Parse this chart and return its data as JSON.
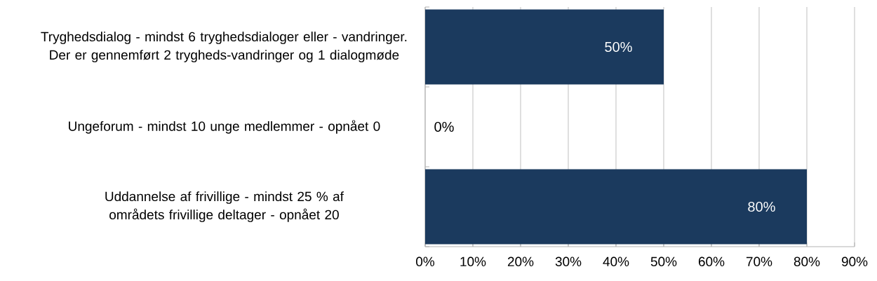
{
  "chart_data": {
    "type": "bar",
    "orientation": "horizontal",
    "categories": [
      "Tryghedsdialog - mindst 6 tryghedsdialoger eller - vandringer. Der er gennemført 2 trygheds-vandringer og 1 dialogmøde",
      "Ungeforum - mindst 10 unge medlemmer - opnået 0",
      "Uddannelse af frivillige - mindst 25 % af områdets frivillige deltager - opnået 20"
    ],
    "values": [
      50,
      0,
      80
    ],
    "value_labels": [
      "50%",
      "0%",
      "80%"
    ],
    "color": "#1b3a5e",
    "xlim": [
      0,
      90
    ],
    "xticks": [
      {
        "value": 0,
        "label": "0%"
      },
      {
        "value": 10,
        "label": "10%"
      },
      {
        "value": 20,
        "label": "20%"
      },
      {
        "value": 30,
        "label": "30%"
      },
      {
        "value": 40,
        "label": "40%"
      },
      {
        "value": 50,
        "label": "50%"
      },
      {
        "value": 60,
        "label": "60%"
      },
      {
        "value": 70,
        "label": "70%"
      },
      {
        "value": 80,
        "label": "80%"
      },
      {
        "value": 90,
        "label": "90%"
      }
    ],
    "grid": "x"
  }
}
